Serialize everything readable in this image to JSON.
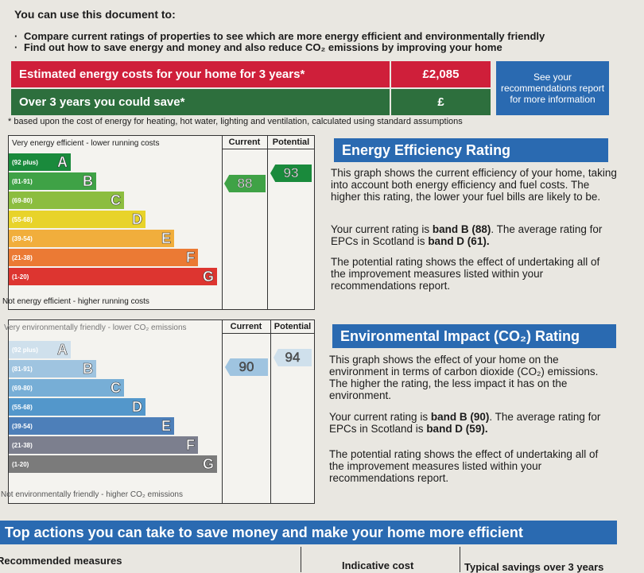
{
  "intro": {
    "title": "You can use this document to:",
    "bullets": [
      "Compare current ratings of properties to see which are more energy efficient and environmentally friendly",
      "Find out how to save energy and money and also reduce CO₂ emissions by improving your home"
    ]
  },
  "costs": {
    "row1_label": "Estimated energy costs for your home for 3 years*",
    "row1_value": "£2,085",
    "row2_label": "Over 3 years you could save*",
    "row2_value": "£",
    "see_box": "See your recommendations report for more information",
    "footnote": "* based upon the cost of energy for heating, hot water, lighting and ventilation, calculated using standard assumptions",
    "colors": {
      "red": "#cf1f3a",
      "green": "#2d6f3d",
      "blue": "#2a6ab1"
    }
  },
  "energy": {
    "top_caption": "Very energy efficient - lower running costs",
    "bottom_caption": "Not energy efficient - higher running costs",
    "current_header": "Current",
    "potential_header": "Potential",
    "current_value": "88",
    "potential_value": "93",
    "current_band": "B",
    "potential_band": "A",
    "bands": [
      {
        "range": "(92 plus)",
        "letter": "A",
        "color": "#1a8a3c"
      },
      {
        "range": "(81-91)",
        "letter": "B",
        "color": "#3fa246"
      },
      {
        "range": "(69-80)",
        "letter": "C",
        "color": "#8cbd3f"
      },
      {
        "range": "(55-68)",
        "letter": "D",
        "color": "#e8d32a"
      },
      {
        "range": "(39-54)",
        "letter": "E",
        "color": "#f1ae3c"
      },
      {
        "range": "(21-38)",
        "letter": "F",
        "color": "#eb7a34"
      },
      {
        "range": "(1-20)",
        "letter": "G",
        "color": "#dd3530"
      }
    ],
    "heading": "Energy Efficiency Rating",
    "para1": "This graph shows the current efficiency of your home, taking into account both energy efficiency and fuel costs. The higher this rating, the lower your fuel bills are likely to be.",
    "para2_a": "Your current rating is ",
    "para2_b": "band B (88)",
    "para2_c": ". The average rating for EPCs in Scotland is ",
    "para2_d": "band D (61).",
    "para3": "The potential rating shows the effect of undertaking all of the improvement measures listed within your recommendations report."
  },
  "environment": {
    "top_caption": "Very environmentally friendly - lower CO₂ emissions",
    "bottom_caption": "Not environmentally friendly - higher CO₂ emissions",
    "current_header": "Current",
    "potential_header": "Potential",
    "current_value": "90",
    "potential_value": "94",
    "current_band": "B",
    "potential_band": "A",
    "bands": [
      {
        "range": "(92 plus)",
        "letter": "A",
        "color": "#cfe0ec"
      },
      {
        "range": "(81-91)",
        "letter": "B",
        "color": "#9fc4e0"
      },
      {
        "range": "(69-80)",
        "letter": "C",
        "color": "#77aed6"
      },
      {
        "range": "(55-68)",
        "letter": "D",
        "color": "#5397cb"
      },
      {
        "range": "(39-54)",
        "letter": "E",
        "color": "#4d7fb9"
      },
      {
        "range": "(21-38)",
        "letter": "F",
        "color": "#7c7f8e"
      },
      {
        "range": "(1-20)",
        "letter": "G",
        "color": "#7b7b7b"
      }
    ],
    "heading": "Environmental Impact (CO₂) Rating",
    "para1": "This graph shows the effect of your home on the environment in terms of carbon dioxide (CO₂) emissions. The higher the rating, the less impact it has on the environment.",
    "para2_a": "Your current rating is ",
    "para2_b": "band B (90)",
    "para2_c": ". The average rating for EPCs in Scotland is ",
    "para2_d": "band D (59).",
    "para3": "The potential rating shows the effect of undertaking all of the improvement measures listed within your recommendations report."
  },
  "bottom": {
    "heading": "Top actions you can take to save money and make your home more efficient",
    "col1": "Recommended measures",
    "col2": "Indicative cost",
    "col3": "Typical savings over 3 years"
  }
}
